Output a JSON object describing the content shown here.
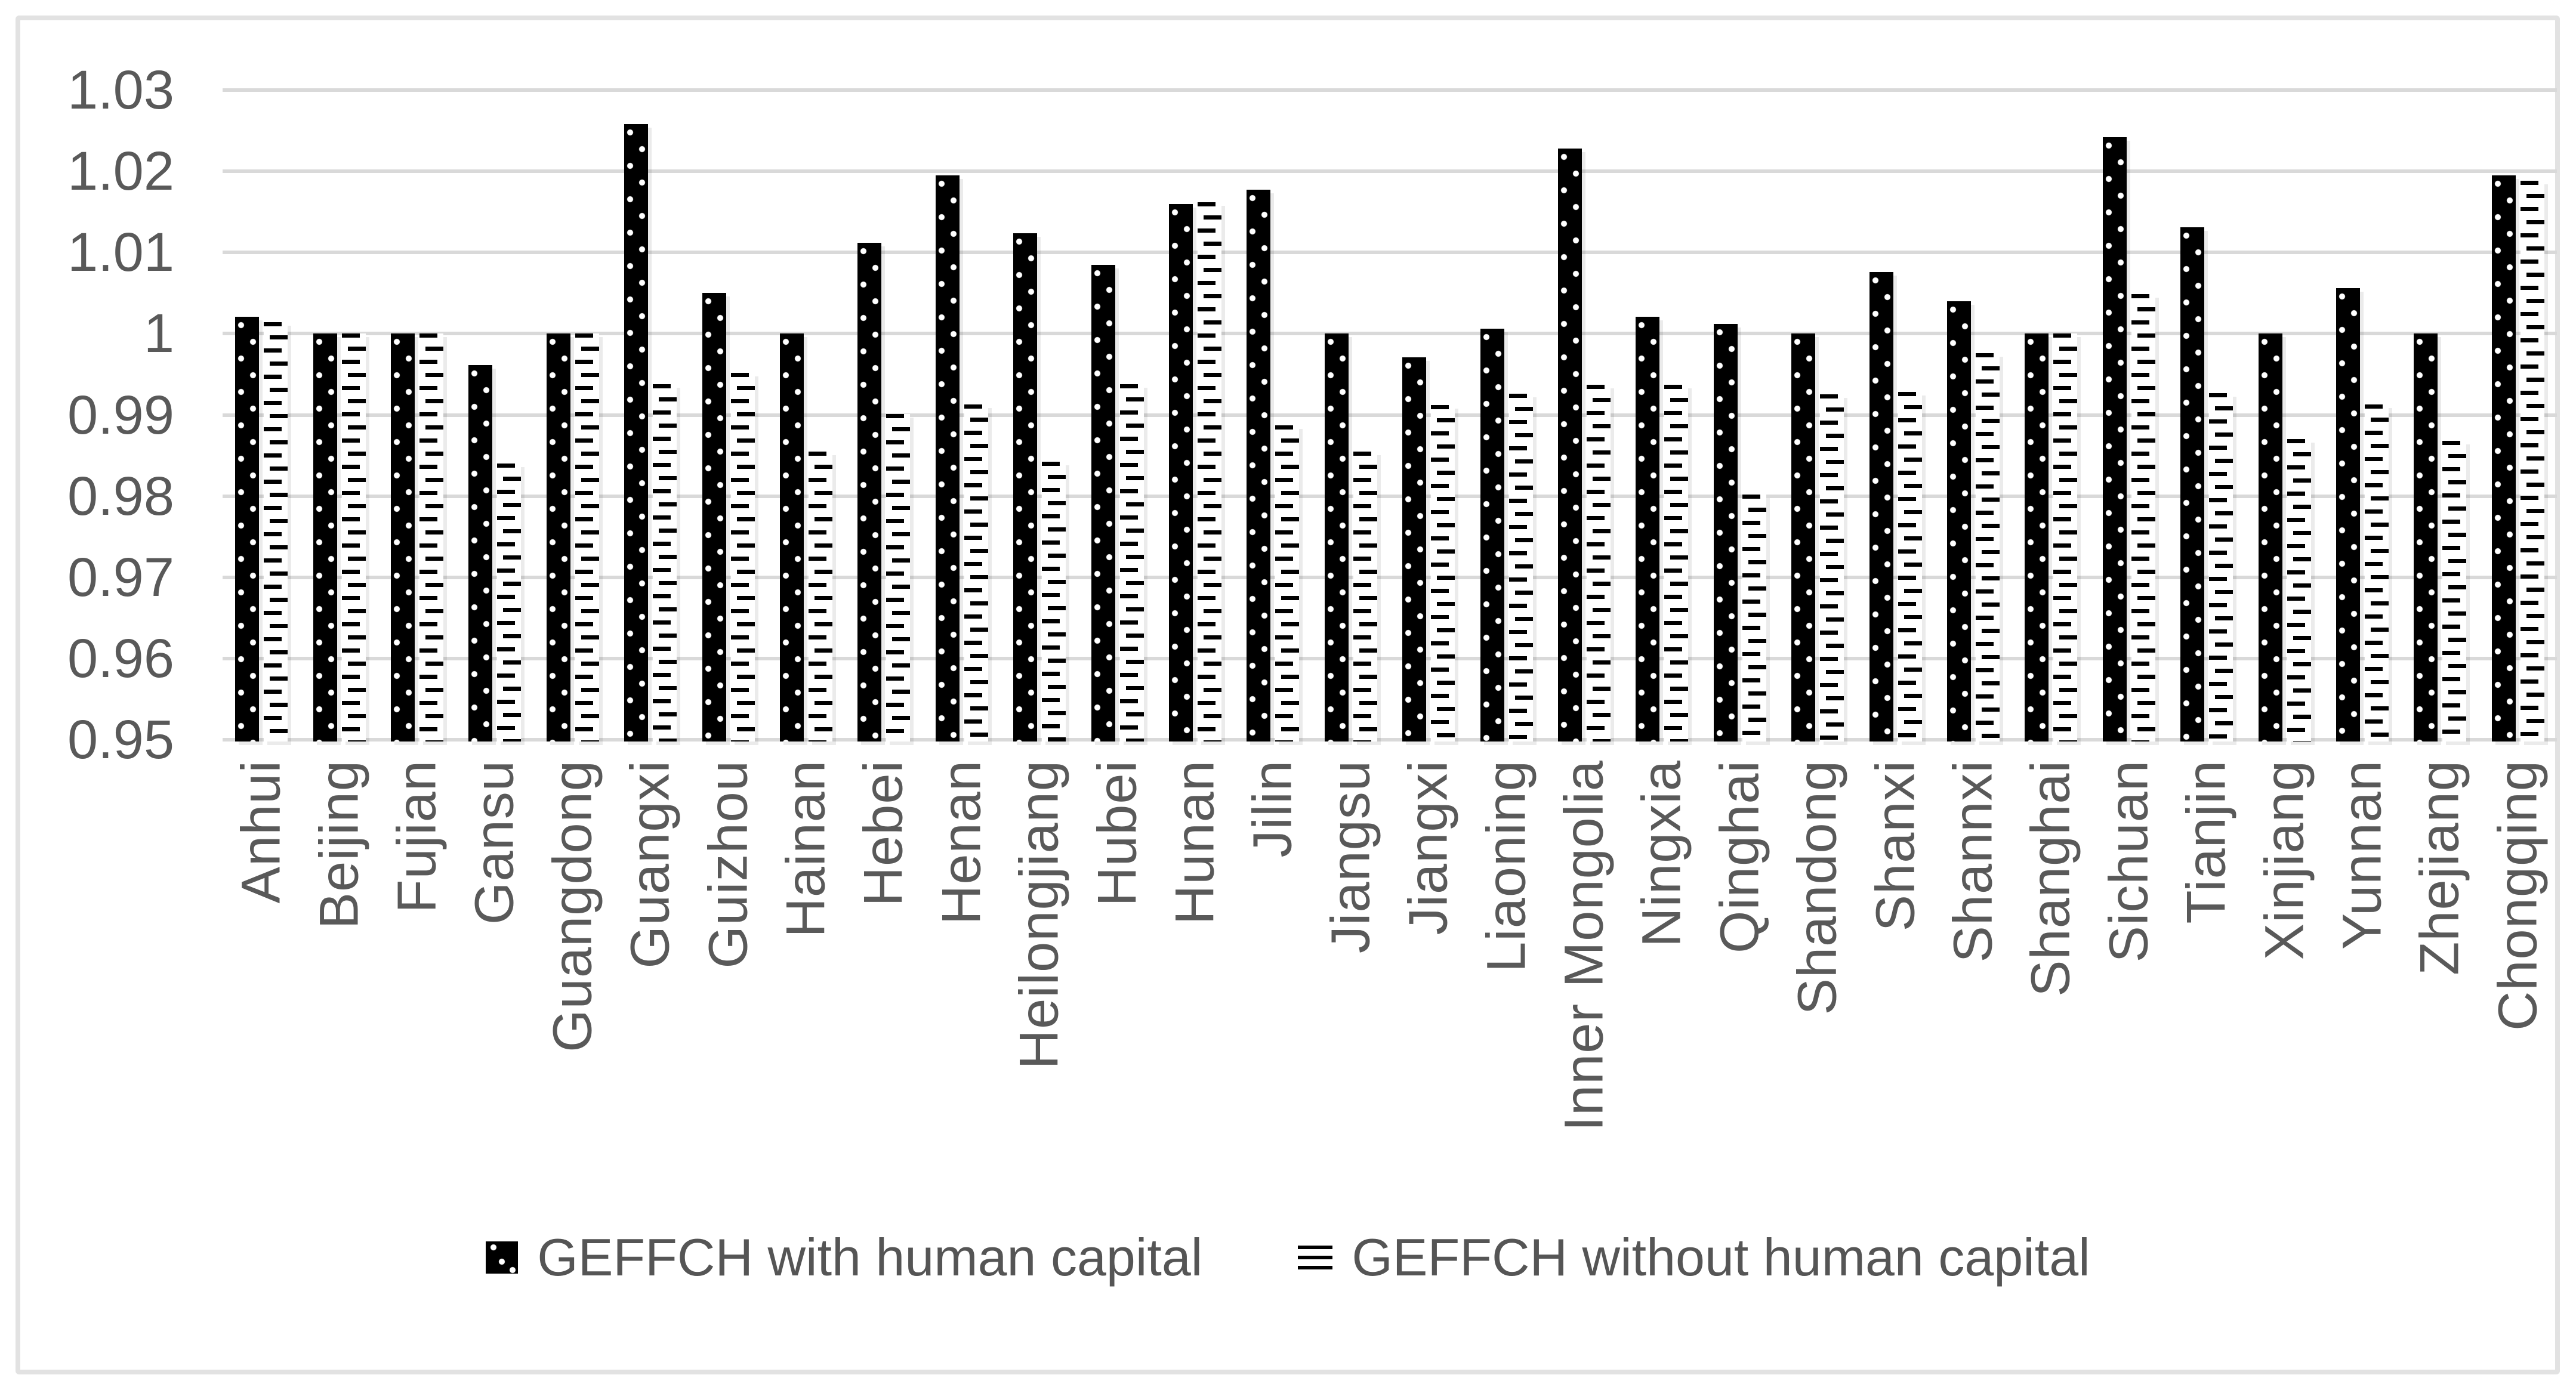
{
  "chart_data": {
    "type": "bar",
    "title": "",
    "categories": [
      "Anhui",
      "Beijing",
      "Fujian",
      "Gansu",
      "Guangdong",
      "Guangxi",
      "Guizhou",
      "Hainan",
      "Hebei",
      "Henan",
      "Heilongjiang",
      "Hubei",
      "Hunan",
      "Jilin",
      "Jiangsu",
      "Jiangxi",
      "Liaoning",
      "Inner Mongolia",
      "Ningxia",
      "Qinghai",
      "Shandong",
      "Shanxi",
      "Shannxi",
      "Shanghai",
      "Sichuan",
      "Tianjin",
      "Xinjiang",
      "Yunnan",
      "Zhejiang",
      "Chongqing"
    ],
    "series": [
      {
        "name": "GEFFCH with human capital",
        "pattern": "white-dots-on-black",
        "values": [
          1.0021,
          1.0,
          1.0,
          0.9961,
          1.0,
          1.0258,
          1.005,
          1.0,
          1.0112,
          1.0195,
          1.0124,
          1.0085,
          1.016,
          1.0177,
          1.0,
          0.9971,
          1.0006,
          1.0228,
          1.0021,
          1.0012,
          1.0,
          1.0076,
          1.004,
          1.0,
          1.0242,
          1.0131,
          1.0,
          1.0056,
          1.0,
          1.0195
        ]
      },
      {
        "name": "GEFFCH without human capital",
        "pattern": "black-dashes-on-white",
        "values": [
          1.0014,
          1.0,
          1.0,
          0.984,
          1.0,
          0.9938,
          0.9952,
          0.9855,
          0.9901,
          0.9913,
          0.9842,
          0.9938,
          1.0162,
          0.9887,
          0.9855,
          0.9912,
          0.9926,
          0.9937,
          0.9937,
          0.9802,
          0.9925,
          0.9928,
          0.9976,
          1.0,
          1.0049,
          0.9927,
          0.987,
          0.9913,
          0.9868,
          1.0188
        ]
      }
    ],
    "ylim": [
      0.95,
      1.03
    ],
    "ytick_step": 0.01,
    "yticks": [
      {
        "value": 1.03,
        "label": "1.03"
      },
      {
        "value": 1.02,
        "label": "1.02"
      },
      {
        "value": 1.01,
        "label": "1.01"
      },
      {
        "value": 1.0,
        "label": "1"
      },
      {
        "value": 0.99,
        "label": "0.99"
      },
      {
        "value": 0.98,
        "label": "0.98"
      },
      {
        "value": 0.97,
        "label": "0.97"
      },
      {
        "value": 0.96,
        "label": "0.96"
      },
      {
        "value": 0.95,
        "label": "0.95"
      }
    ],
    "xlabel": "",
    "ylabel": "",
    "grid": "horizontal",
    "legend_position": "bottom",
    "colors": {
      "bar": "#000000",
      "grid": "#d9d9d9",
      "axis_text": "#595959",
      "legend_text": "#555555",
      "frame_border": "#e2e2e2",
      "background": "#ffffff"
    }
  }
}
